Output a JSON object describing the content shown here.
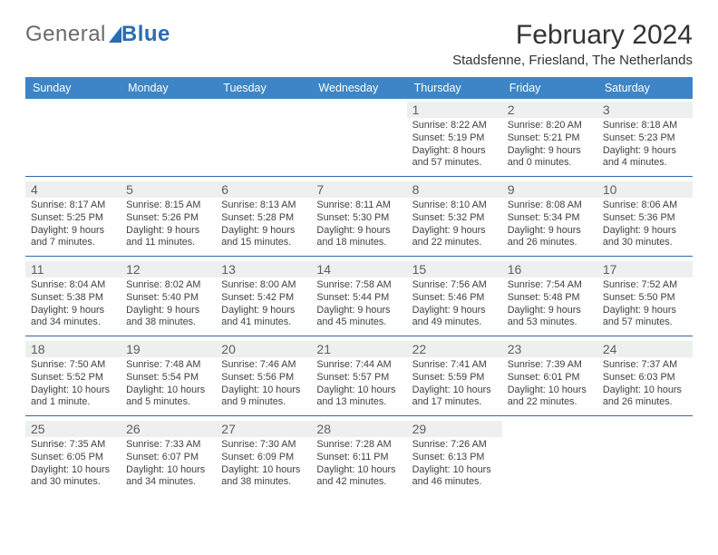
{
  "logo": {
    "text_a": "General",
    "text_b": "Blue"
  },
  "title": "February 2024",
  "location": "Stadsfenne, Friesland, The Netherlands",
  "colors": {
    "header_bg": "#3d85c6",
    "header_fg": "#ffffff",
    "rule": "#2f6aa8",
    "daynum_bg": "#eef0f0",
    "text": "#404040",
    "logo_gray": "#6a6a6a",
    "logo_blue": "#2a6db3"
  },
  "weekdays": [
    "Sunday",
    "Monday",
    "Tuesday",
    "Wednesday",
    "Thursday",
    "Friday",
    "Saturday"
  ],
  "weeks": [
    [
      null,
      null,
      null,
      null,
      {
        "n": "1",
        "sr": "8:22 AM",
        "ss": "5:19 PM",
        "dl1": "Daylight: 8 hours",
        "dl2": "and 57 minutes."
      },
      {
        "n": "2",
        "sr": "8:20 AM",
        "ss": "5:21 PM",
        "dl1": "Daylight: 9 hours",
        "dl2": "and 0 minutes."
      },
      {
        "n": "3",
        "sr": "8:18 AM",
        "ss": "5:23 PM",
        "dl1": "Daylight: 9 hours",
        "dl2": "and 4 minutes."
      }
    ],
    [
      {
        "n": "4",
        "sr": "8:17 AM",
        "ss": "5:25 PM",
        "dl1": "Daylight: 9 hours",
        "dl2": "and 7 minutes."
      },
      {
        "n": "5",
        "sr": "8:15 AM",
        "ss": "5:26 PM",
        "dl1": "Daylight: 9 hours",
        "dl2": "and 11 minutes."
      },
      {
        "n": "6",
        "sr": "8:13 AM",
        "ss": "5:28 PM",
        "dl1": "Daylight: 9 hours",
        "dl2": "and 15 minutes."
      },
      {
        "n": "7",
        "sr": "8:11 AM",
        "ss": "5:30 PM",
        "dl1": "Daylight: 9 hours",
        "dl2": "and 18 minutes."
      },
      {
        "n": "8",
        "sr": "8:10 AM",
        "ss": "5:32 PM",
        "dl1": "Daylight: 9 hours",
        "dl2": "and 22 minutes."
      },
      {
        "n": "9",
        "sr": "8:08 AM",
        "ss": "5:34 PM",
        "dl1": "Daylight: 9 hours",
        "dl2": "and 26 minutes."
      },
      {
        "n": "10",
        "sr": "8:06 AM",
        "ss": "5:36 PM",
        "dl1": "Daylight: 9 hours",
        "dl2": "and 30 minutes."
      }
    ],
    [
      {
        "n": "11",
        "sr": "8:04 AM",
        "ss": "5:38 PM",
        "dl1": "Daylight: 9 hours",
        "dl2": "and 34 minutes."
      },
      {
        "n": "12",
        "sr": "8:02 AM",
        "ss": "5:40 PM",
        "dl1": "Daylight: 9 hours",
        "dl2": "and 38 minutes."
      },
      {
        "n": "13",
        "sr": "8:00 AM",
        "ss": "5:42 PM",
        "dl1": "Daylight: 9 hours",
        "dl2": "and 41 minutes."
      },
      {
        "n": "14",
        "sr": "7:58 AM",
        "ss": "5:44 PM",
        "dl1": "Daylight: 9 hours",
        "dl2": "and 45 minutes."
      },
      {
        "n": "15",
        "sr": "7:56 AM",
        "ss": "5:46 PM",
        "dl1": "Daylight: 9 hours",
        "dl2": "and 49 minutes."
      },
      {
        "n": "16",
        "sr": "7:54 AM",
        "ss": "5:48 PM",
        "dl1": "Daylight: 9 hours",
        "dl2": "and 53 minutes."
      },
      {
        "n": "17",
        "sr": "7:52 AM",
        "ss": "5:50 PM",
        "dl1": "Daylight: 9 hours",
        "dl2": "and 57 minutes."
      }
    ],
    [
      {
        "n": "18",
        "sr": "7:50 AM",
        "ss": "5:52 PM",
        "dl1": "Daylight: 10 hours",
        "dl2": "and 1 minute."
      },
      {
        "n": "19",
        "sr": "7:48 AM",
        "ss": "5:54 PM",
        "dl1": "Daylight: 10 hours",
        "dl2": "and 5 minutes."
      },
      {
        "n": "20",
        "sr": "7:46 AM",
        "ss": "5:56 PM",
        "dl1": "Daylight: 10 hours",
        "dl2": "and 9 minutes."
      },
      {
        "n": "21",
        "sr": "7:44 AM",
        "ss": "5:57 PM",
        "dl1": "Daylight: 10 hours",
        "dl2": "and 13 minutes."
      },
      {
        "n": "22",
        "sr": "7:41 AM",
        "ss": "5:59 PM",
        "dl1": "Daylight: 10 hours",
        "dl2": "and 17 minutes."
      },
      {
        "n": "23",
        "sr": "7:39 AM",
        "ss": "6:01 PM",
        "dl1": "Daylight: 10 hours",
        "dl2": "and 22 minutes."
      },
      {
        "n": "24",
        "sr": "7:37 AM",
        "ss": "6:03 PM",
        "dl1": "Daylight: 10 hours",
        "dl2": "and 26 minutes."
      }
    ],
    [
      {
        "n": "25",
        "sr": "7:35 AM",
        "ss": "6:05 PM",
        "dl1": "Daylight: 10 hours",
        "dl2": "and 30 minutes."
      },
      {
        "n": "26",
        "sr": "7:33 AM",
        "ss": "6:07 PM",
        "dl1": "Daylight: 10 hours",
        "dl2": "and 34 minutes."
      },
      {
        "n": "27",
        "sr": "7:30 AM",
        "ss": "6:09 PM",
        "dl1": "Daylight: 10 hours",
        "dl2": "and 38 minutes."
      },
      {
        "n": "28",
        "sr": "7:28 AM",
        "ss": "6:11 PM",
        "dl1": "Daylight: 10 hours",
        "dl2": "and 42 minutes."
      },
      {
        "n": "29",
        "sr": "7:26 AM",
        "ss": "6:13 PM",
        "dl1": "Daylight: 10 hours",
        "dl2": "and 46 minutes."
      },
      null,
      null
    ]
  ],
  "labels": {
    "sunrise": "Sunrise: ",
    "sunset": "Sunset: "
  }
}
